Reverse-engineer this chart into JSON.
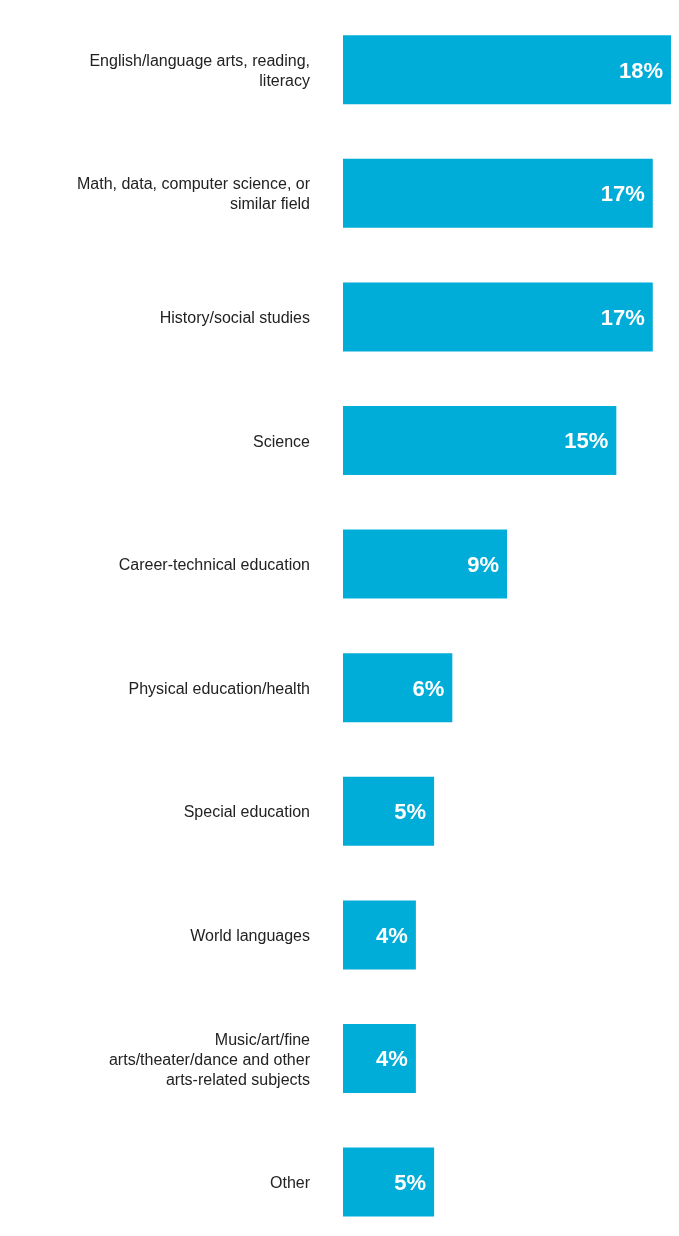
{
  "chart_data": {
    "type": "bar",
    "orientation": "horizontal",
    "categories": [
      "English/language arts, reading, literacy",
      "Math, data, computer science, or similar field",
      "History/social studies",
      "Science",
      "Career-technical education",
      "Physical education/health",
      "Special education",
      "World languages",
      "Music/art/fine arts/theater/dance and other arts-related subjects",
      "Other"
    ],
    "values": [
      18,
      17,
      17,
      15,
      9,
      6,
      5,
      4,
      4,
      5
    ],
    "value_labels": [
      "18%",
      "17%",
      "17%",
      "15%",
      "9%",
      "6%",
      "5%",
      "4%",
      "4%",
      "5%"
    ],
    "color": "#00acd8"
  }
}
